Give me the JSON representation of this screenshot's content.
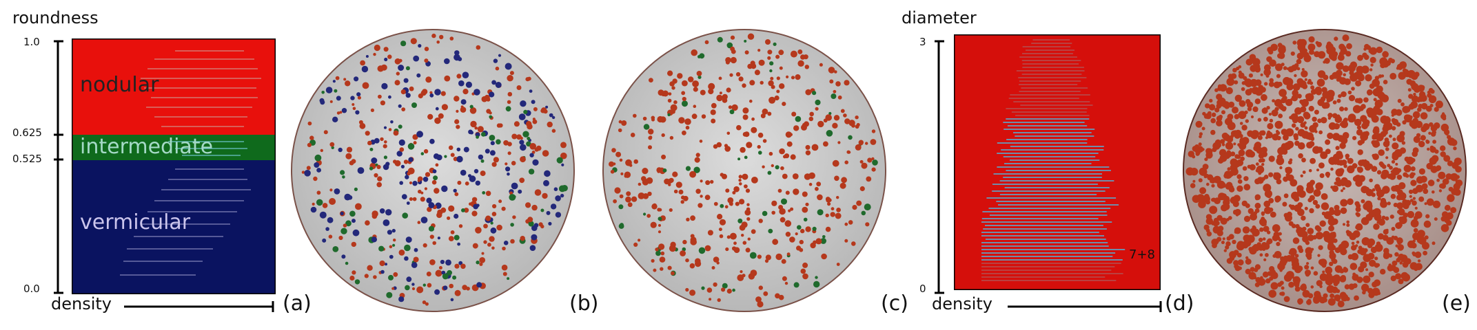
{
  "panel_a": {
    "y_title": "roundness",
    "x_title": "density",
    "ticks": [
      "1.0",
      "0.625",
      "0.525",
      "0.0"
    ],
    "regions": {
      "nodular": "nodular",
      "intermediate": "intermediate",
      "vermicular": "vermicular"
    },
    "letter": "(a)"
  },
  "panel_b": {
    "letter": "(b)"
  },
  "panel_c": {
    "letter": "(c)"
  },
  "panel_d": {
    "y_title": "diameter",
    "x_title": "density",
    "ticks": [
      "3",
      "0"
    ],
    "annotation": "7+8",
    "letter": "(d)"
  },
  "panel_e": {
    "letter": "(e)"
  },
  "colors": {
    "nodular": "#e8100c",
    "intermediate": "#0f6a1c",
    "vermicular": "#0a1360",
    "particle_red": "#b5381c",
    "particle_blue": "#23287a",
    "particle_green": "#1f6a2c",
    "sample_gray": "#cfcfcf",
    "highlight": "#4fb6e0"
  }
}
